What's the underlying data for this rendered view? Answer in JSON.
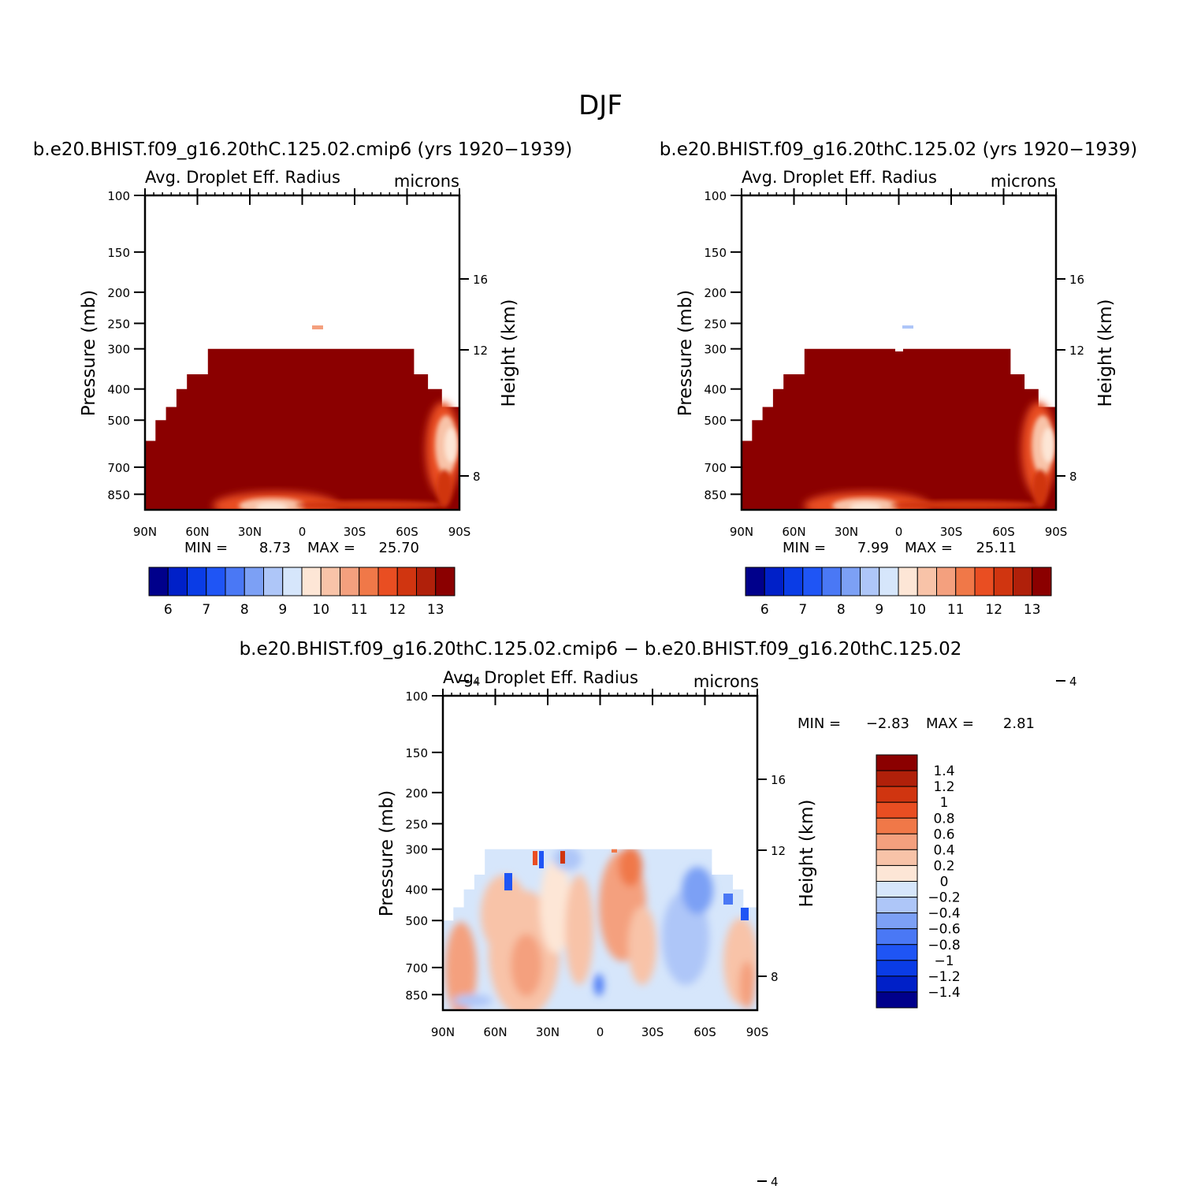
{
  "figure": {
    "title": "DJF"
  },
  "colors": {
    "abs_palette": [
      "#00008b",
      "#0020c8",
      "#0a3ce6",
      "#1f55f5",
      "#4a78f5",
      "#7ca0f5",
      "#aec6f8",
      "#d6e6fb",
      "#fde6d6",
      "#f8c3a8",
      "#f4a07e",
      "#f07848",
      "#e94e22",
      "#d03510",
      "#b0200a",
      "#8b0000"
    ],
    "diff_palette": [
      "#00008b",
      "#0020c8",
      "#0a3ce6",
      "#1f55f5",
      "#4a78f5",
      "#7ca0f5",
      "#aec6f8",
      "#d6e6fb",
      "#fde6d6",
      "#f8c3a8",
      "#f4a07e",
      "#f07848",
      "#e94e22",
      "#d03510",
      "#b0200a",
      "#8b0000"
    ]
  },
  "chart_data": [
    {
      "type": "heatmap",
      "id": "panel-1",
      "title": "b.e20.BHIST.f09_g16.20thC.125.02.cmip6 (yrs 1920−1939)",
      "subtitle_left": "Avg. Droplet Eff. Radius",
      "subtitle_right": "microns",
      "ylabel": "Pressure (mb)",
      "ylabel_right": "Height (km)",
      "x_ticks": [
        "90N",
        "60N",
        "30N",
        "0",
        "30S",
        "60S",
        "90S"
      ],
      "x_range": [
        90,
        -90
      ],
      "y_ticks": [
        "100",
        "150",
        "200",
        "250",
        "300",
        "400",
        "500",
        "700",
        "850"
      ],
      "y_range": [
        100,
        950
      ],
      "y_scale": "log",
      "y_ticks_right": [
        "16",
        "12",
        "8",
        "4"
      ],
      "min_label": "MIN =",
      "min_value": "8.73",
      "max_label": "MAX =",
      "max_value": "25.70",
      "colorbar_orientation": "horizontal",
      "colorbar_labels": [
        "6",
        "7",
        "8",
        "9",
        "10",
        "11",
        "12",
        "13"
      ],
      "cloud_top": [
        [
          90,
          580
        ],
        [
          84,
          500
        ],
        [
          78,
          455
        ],
        [
          72,
          400
        ],
        [
          66,
          360
        ],
        [
          54,
          300
        ],
        [
          -50,
          300
        ],
        [
          -64,
          360
        ],
        [
          -72,
          400
        ],
        [
          -80,
          455
        ],
        [
          -90,
          455
        ]
      ],
      "cloud_spike": {
        "lat": [
          7,
          12
        ],
        "top": 250,
        "bottom": 300
      },
      "grid": false
    },
    {
      "type": "heatmap",
      "id": "panel-2",
      "title": "b.e20.BHIST.f09_g16.20thC.125.02 (yrs 1920−1939)",
      "subtitle_left": "Avg. Droplet Eff. Radius",
      "subtitle_right": "microns",
      "ylabel": "Pressure (mb)",
      "ylabel_right": "Height (km)",
      "x_ticks": [
        "90N",
        "60N",
        "30N",
        "0",
        "30S",
        "60S",
        "90S"
      ],
      "x_range": [
        90,
        -90
      ],
      "y_ticks": [
        "100",
        "150",
        "200",
        "250",
        "300",
        "400",
        "500",
        "700",
        "850"
      ],
      "y_range": [
        100,
        950
      ],
      "y_scale": "log",
      "y_ticks_right": [
        "16",
        "12",
        "8",
        "4"
      ],
      "min_label": "MIN =",
      "min_value": "7.99",
      "max_label": "MAX =",
      "max_value": "25.11",
      "colorbar_orientation": "horizontal",
      "colorbar_labels": [
        "6",
        "7",
        "8",
        "9",
        "10",
        "11",
        "12",
        "13"
      ],
      "cloud_top": [
        [
          90,
          580
        ],
        [
          84,
          500
        ],
        [
          78,
          455
        ],
        [
          72,
          400
        ],
        [
          66,
          360
        ],
        [
          54,
          300
        ],
        [
          -50,
          300
        ],
        [
          -64,
          360
        ],
        [
          -72,
          400
        ],
        [
          -80,
          455
        ],
        [
          -90,
          455
        ]
      ],
      "cloud_spike": {
        "lat": [
          3,
          10
        ],
        "top": 250,
        "bottom": 300
      },
      "grid": false
    },
    {
      "type": "heatmap",
      "id": "panel-diff",
      "title": "b.e20.BHIST.f09_g16.20thC.125.02.cmip6 − b.e20.BHIST.f09_g16.20thC.125.02",
      "subtitle_left": "Avg. Droplet Eff. Radius",
      "subtitle_right": "microns",
      "ylabel": "Pressure (mb)",
      "ylabel_right": "Height (km)",
      "x_ticks": [
        "90N",
        "60N",
        "30N",
        "0",
        "30S",
        "60S",
        "90S"
      ],
      "x_range": [
        90,
        -90
      ],
      "y_ticks": [
        "100",
        "150",
        "200",
        "250",
        "300",
        "400",
        "500",
        "700",
        "850"
      ],
      "y_range": [
        100,
        950
      ],
      "y_scale": "log",
      "y_ticks_right": [
        "16",
        "12",
        "8",
        "4"
      ],
      "min_label": "MIN =",
      "min_value": "−2.83",
      "max_label": "MAX =",
      "max_value": "2.81",
      "colorbar_orientation": "vertical",
      "colorbar_labels": [
        "1.4",
        "1.2",
        "1",
        "0.8",
        "0.6",
        "0.4",
        "0.2",
        "0",
        "−0.2",
        "−0.4",
        "−0.6",
        "−0.8",
        "−1",
        "−1.2",
        "−1.4"
      ],
      "cloud_top": [
        [
          90,
          500
        ],
        [
          84,
          455
        ],
        [
          78,
          400
        ],
        [
          72,
          360
        ],
        [
          66,
          300
        ],
        [
          -50,
          300
        ],
        [
          -64,
          360
        ],
        [
          -76,
          400
        ],
        [
          -82,
          455
        ],
        [
          -90,
          500
        ]
      ],
      "cloud_spike": {
        "lat": [
          6,
          9
        ],
        "top": 250,
        "bottom": 300
      },
      "grid": false
    }
  ]
}
